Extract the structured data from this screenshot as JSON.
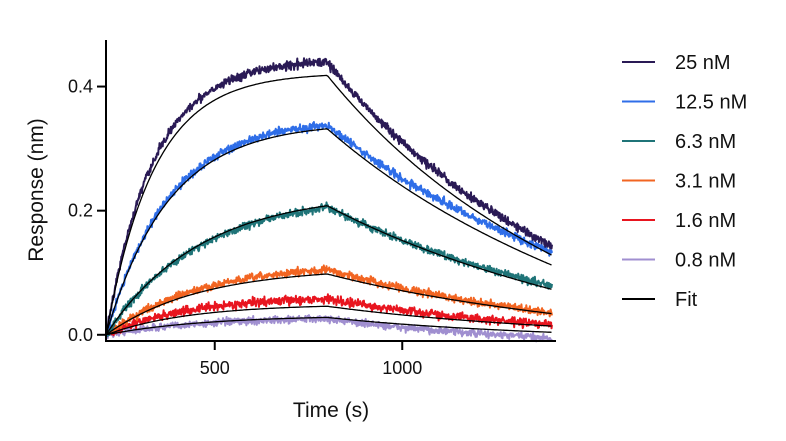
{
  "chart_data": {
    "type": "line",
    "title": "",
    "xlabel": "Time (s)",
    "ylabel": "Response (nm)",
    "xlim": [
      210,
      1410
    ],
    "ylim": [
      -0.01,
      0.475
    ],
    "xticks": [
      500,
      1000
    ],
    "xtick_labels": [
      "500",
      "1000"
    ],
    "yticks": [
      0.0,
      0.2,
      0.4
    ],
    "ytick_labels": [
      "0.0",
      "0.2",
      "0.4"
    ],
    "grid": false,
    "legend_position": "right",
    "association_start": 210,
    "dissociation_start": 800,
    "end_time": 1400,
    "series": [
      {
        "name": "25 nM",
        "color": "#2a1a55",
        "peak": 0.44,
        "end": 0.143,
        "fit_peak": 0.418,
        "fit_end": 0.128,
        "kobs": 0.0078,
        "kd": 0.0021,
        "noise": 0.0035
      },
      {
        "name": "12.5 nM",
        "color": "#2f6ee8",
        "peak": 0.338,
        "end": 0.133,
        "fit_peak": 0.332,
        "fit_end": 0.112,
        "kobs": 0.006,
        "kd": 0.00185,
        "noise": 0.0035
      },
      {
        "name": "6.3 nM",
        "color": "#1f7478",
        "peak": 0.205,
        "end": 0.078,
        "fit_peak": 0.208,
        "fit_end": 0.073,
        "kobs": 0.004,
        "kd": 0.0018,
        "noise": 0.0032
      },
      {
        "name": "3.1 nM",
        "color": "#f26522",
        "peak": 0.105,
        "end": 0.035,
        "fit_peak": 0.098,
        "fit_end": 0.034,
        "kobs": 0.004,
        "kd": 0.0019,
        "noise": 0.0032
      },
      {
        "name": "1.6 nM",
        "color": "#e8151f",
        "peak": 0.058,
        "end": 0.016,
        "fit_peak": 0.046,
        "fit_end": 0.014,
        "kobs": 0.0045,
        "kd": 0.0021,
        "noise": 0.0035
      },
      {
        "name": "0.8 nM",
        "color": "#a08fd0",
        "peak": 0.026,
        "end": -0.005,
        "fit_peak": 0.028,
        "fit_end": 0.004,
        "kobs": 0.0038,
        "kd": 0.0023,
        "noise": 0.003
      }
    ],
    "fit": {
      "name": "Fit",
      "color": "#000000"
    }
  }
}
